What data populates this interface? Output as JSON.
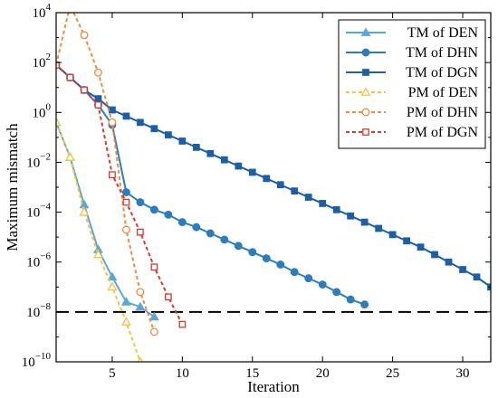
{
  "chart_data": {
    "type": "line",
    "title": "",
    "xlabel": "Iteration",
    "ylabel": "Maximum mismatch",
    "xlim": [
      1,
      32
    ],
    "ylim_log10": [
      -10,
      4
    ],
    "y_scale": "log",
    "grid": false,
    "legend_position": "top-right",
    "x_ticks": [
      {
        "value": 5,
        "label": "5"
      },
      {
        "value": 10,
        "label": "10"
      },
      {
        "value": 15,
        "label": "15"
      },
      {
        "value": 20,
        "label": "20"
      },
      {
        "value": 25,
        "label": "25"
      },
      {
        "value": 30,
        "label": "30"
      }
    ],
    "y_ticks": [
      {
        "exp": 4,
        "base": "10",
        "sup": "4"
      },
      {
        "exp": 2,
        "base": "10",
        "sup": "2"
      },
      {
        "exp": 0,
        "base": "10",
        "sup": "0"
      },
      {
        "exp": -2,
        "base": "10",
        "sup": "−2"
      },
      {
        "exp": -4,
        "base": "10",
        "sup": "−4"
      },
      {
        "exp": -6,
        "base": "10",
        "sup": "−6"
      },
      {
        "exp": -8,
        "base": "10",
        "sup": "−8"
      },
      {
        "exp": -10,
        "base": "10",
        "sup": "−10"
      }
    ],
    "threshold": {
      "value_log10": -8,
      "style": "dashed",
      "color": "#000000"
    },
    "series": [
      {
        "name": "TM of DEN",
        "color": "#5aa8d8",
        "dashed": false,
        "marker": "triangle",
        "x": [
          1,
          2,
          3,
          4,
          5,
          6,
          7,
          8
        ],
        "log10_y": [
          -0.4,
          -1.8,
          -3.7,
          -5.5,
          -6.6,
          -7.6,
          -7.8,
          -8.2
        ]
      },
      {
        "name": "TM of DHN",
        "color": "#2a7dbf",
        "dashed": false,
        "marker": "circle",
        "x": [
          1,
          2,
          3,
          4,
          5,
          6,
          7,
          8,
          9,
          10,
          11,
          12,
          13,
          14,
          15,
          16,
          17,
          18,
          19,
          20,
          21,
          22,
          23
        ],
        "log10_y": [
          1.9,
          1.4,
          0.9,
          0.3,
          -0.5,
          -3.2,
          -3.6,
          -3.9,
          -4.1,
          -4.4,
          -4.6,
          -4.85,
          -5.1,
          -5.35,
          -5.6,
          -5.85,
          -6.1,
          -6.4,
          -6.65,
          -6.9,
          -7.2,
          -7.5,
          -7.7
        ]
      },
      {
        "name": "TM of DGN",
        "color": "#1a5fa8",
        "dashed": false,
        "marker": "square",
        "x": [
          1,
          2,
          3,
          4,
          5,
          6,
          7,
          8,
          9,
          10,
          11,
          12,
          13,
          14,
          15,
          16,
          17,
          18,
          19,
          20,
          21,
          22,
          23,
          24,
          25,
          26,
          27,
          28,
          29,
          30,
          31,
          32
        ],
        "log10_y": [
          1.9,
          1.4,
          0.9,
          0.55,
          0.1,
          -0.15,
          -0.4,
          -0.65,
          -0.9,
          -1.15,
          -1.4,
          -1.65,
          -1.9,
          -2.15,
          -2.4,
          -2.65,
          -2.9,
          -3.15,
          -3.4,
          -3.65,
          -3.9,
          -4.15,
          -4.4,
          -4.65,
          -4.9,
          -5.15,
          -5.4,
          -5.7,
          -6.0,
          -6.3,
          -6.6,
          -7.0
        ]
      },
      {
        "name": "PM of DEN",
        "color": "#f5c242",
        "dashed": true,
        "marker": "triangle-open",
        "x": [
          1,
          2,
          3,
          4,
          5,
          6,
          7
        ],
        "log10_y": [
          -0.4,
          -1.8,
          -4.0,
          -5.7,
          -7.0,
          -8.4,
          -10.0
        ]
      },
      {
        "name": "PM of DHN",
        "color": "#f08a3c",
        "dashed": true,
        "marker": "circle-open",
        "x": [
          1,
          2,
          3,
          4,
          5,
          6,
          7,
          8
        ],
        "log10_y": [
          1.9,
          4.3,
          3.1,
          1.6,
          -0.4,
          -4.7,
          -7.2,
          -8.8
        ]
      },
      {
        "name": "PM of DGN",
        "color": "#d73a2c",
        "dashed": true,
        "marker": "square-open",
        "x": [
          1,
          2,
          3,
          4,
          5,
          6,
          7,
          8,
          9,
          10
        ],
        "log10_y": [
          1.9,
          1.4,
          0.9,
          0.3,
          -2.5,
          -3.6,
          -4.8,
          -6.2,
          -7.4,
          -8.5
        ]
      }
    ]
  }
}
